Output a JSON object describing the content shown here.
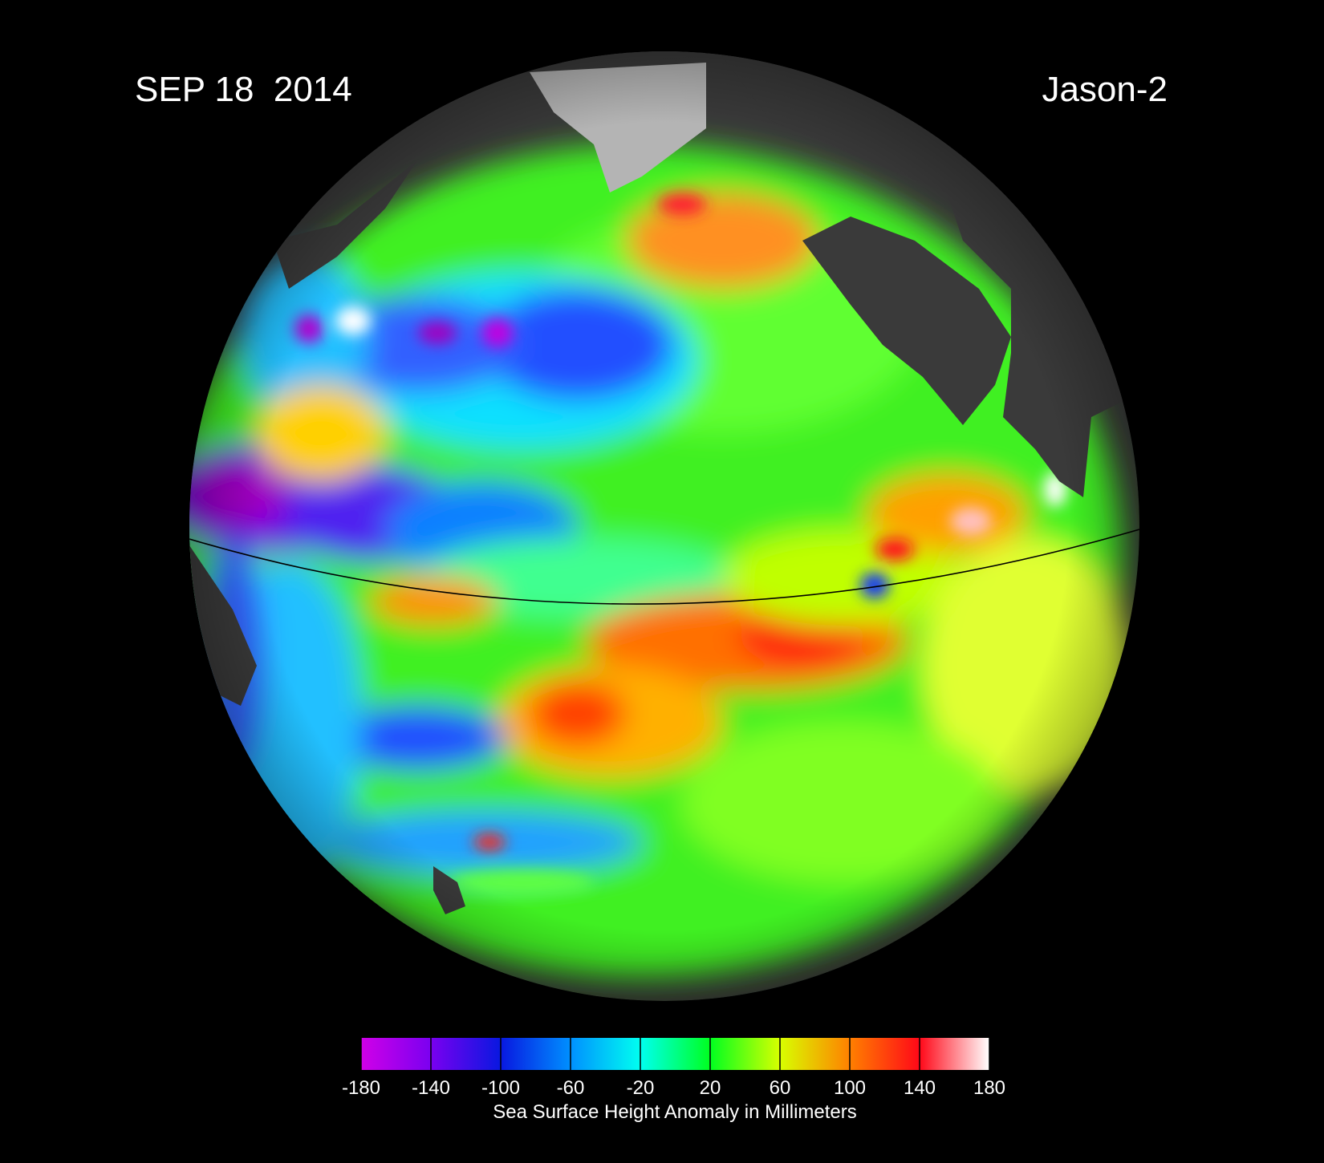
{
  "header": {
    "date": "SEP 18  2014",
    "satellite": "Jason-2"
  },
  "colorbar": {
    "label": "Sea Surface Height Anomaly in Millimeters",
    "lim": [
      -180,
      180
    ],
    "ticks": [
      -180,
      -140,
      -100,
      -60,
      -20,
      20,
      60,
      100,
      140,
      180
    ],
    "colors": [
      "#d000e8",
      "#7a00f0",
      "#0818e0",
      "#0090ff",
      "#00fff0",
      "#00ff20",
      "#d8ff00",
      "#ff8000",
      "#ff0818",
      "#ffffff"
    ]
  }
}
